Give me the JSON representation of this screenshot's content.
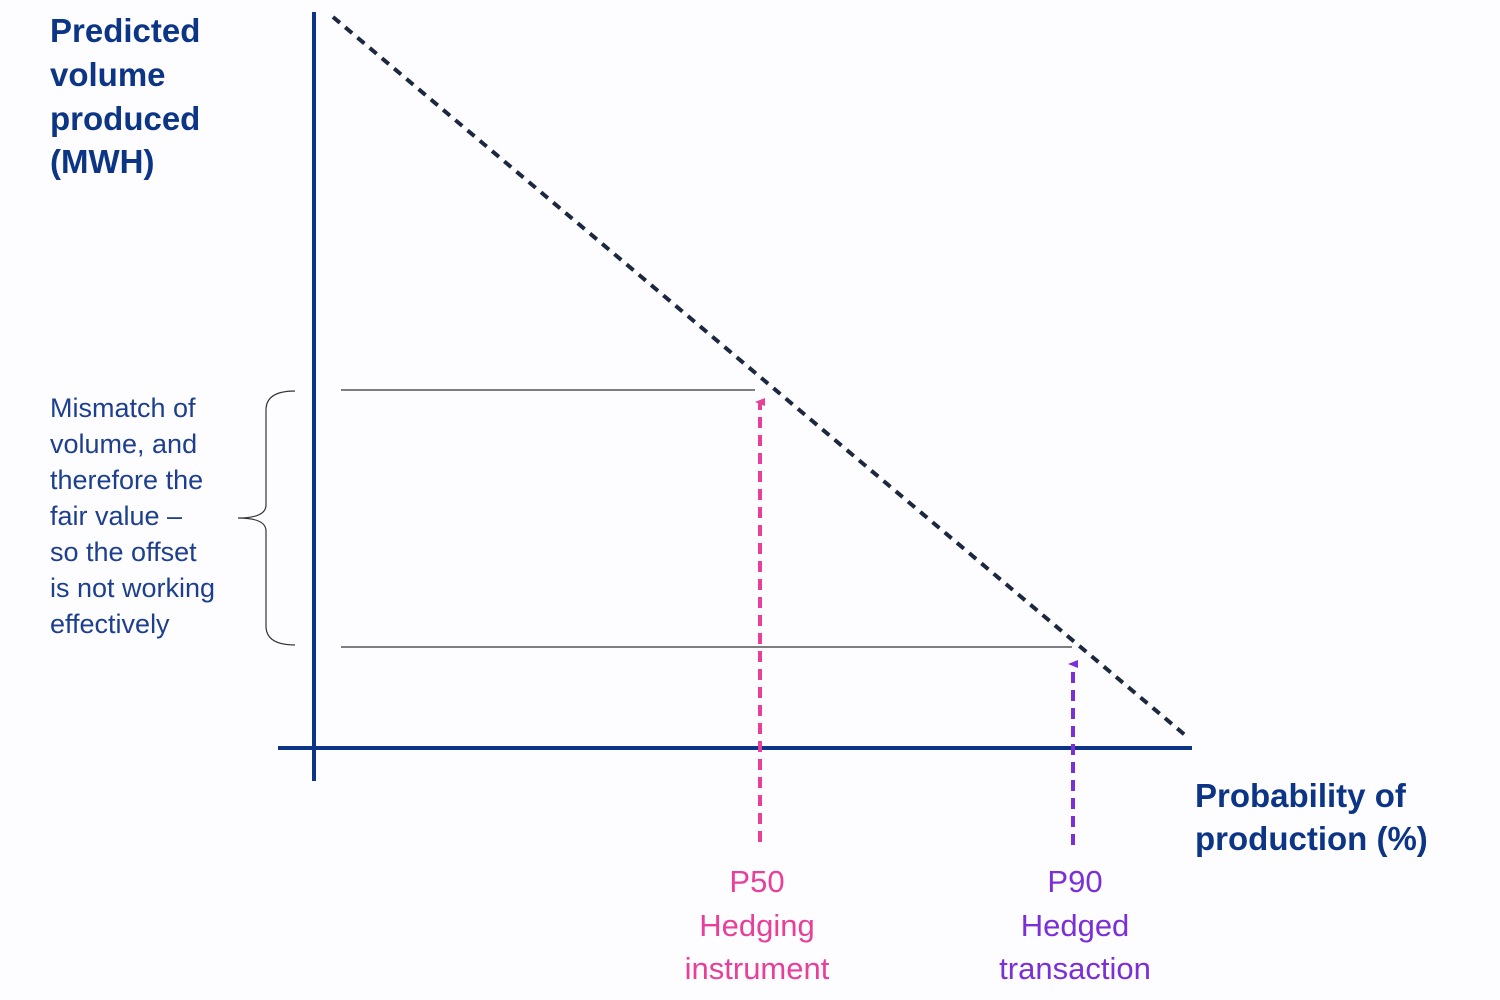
{
  "y_axis_label": [
    "Predicted",
    "volume",
    "produced",
    "(MWH)"
  ],
  "x_axis_label": [
    "Probability of",
    "production (%)"
  ],
  "annotation": [
    "Mismatch of",
    "volume, and",
    "therefore the",
    "fair value –",
    "so the offset",
    "is not working",
    "effectively"
  ],
  "markers": [
    {
      "label": [
        "P50",
        "Hedging",
        "instrument"
      ]
    },
    {
      "label": [
        "P90",
        "Hedged",
        "transaction"
      ]
    }
  ]
}
